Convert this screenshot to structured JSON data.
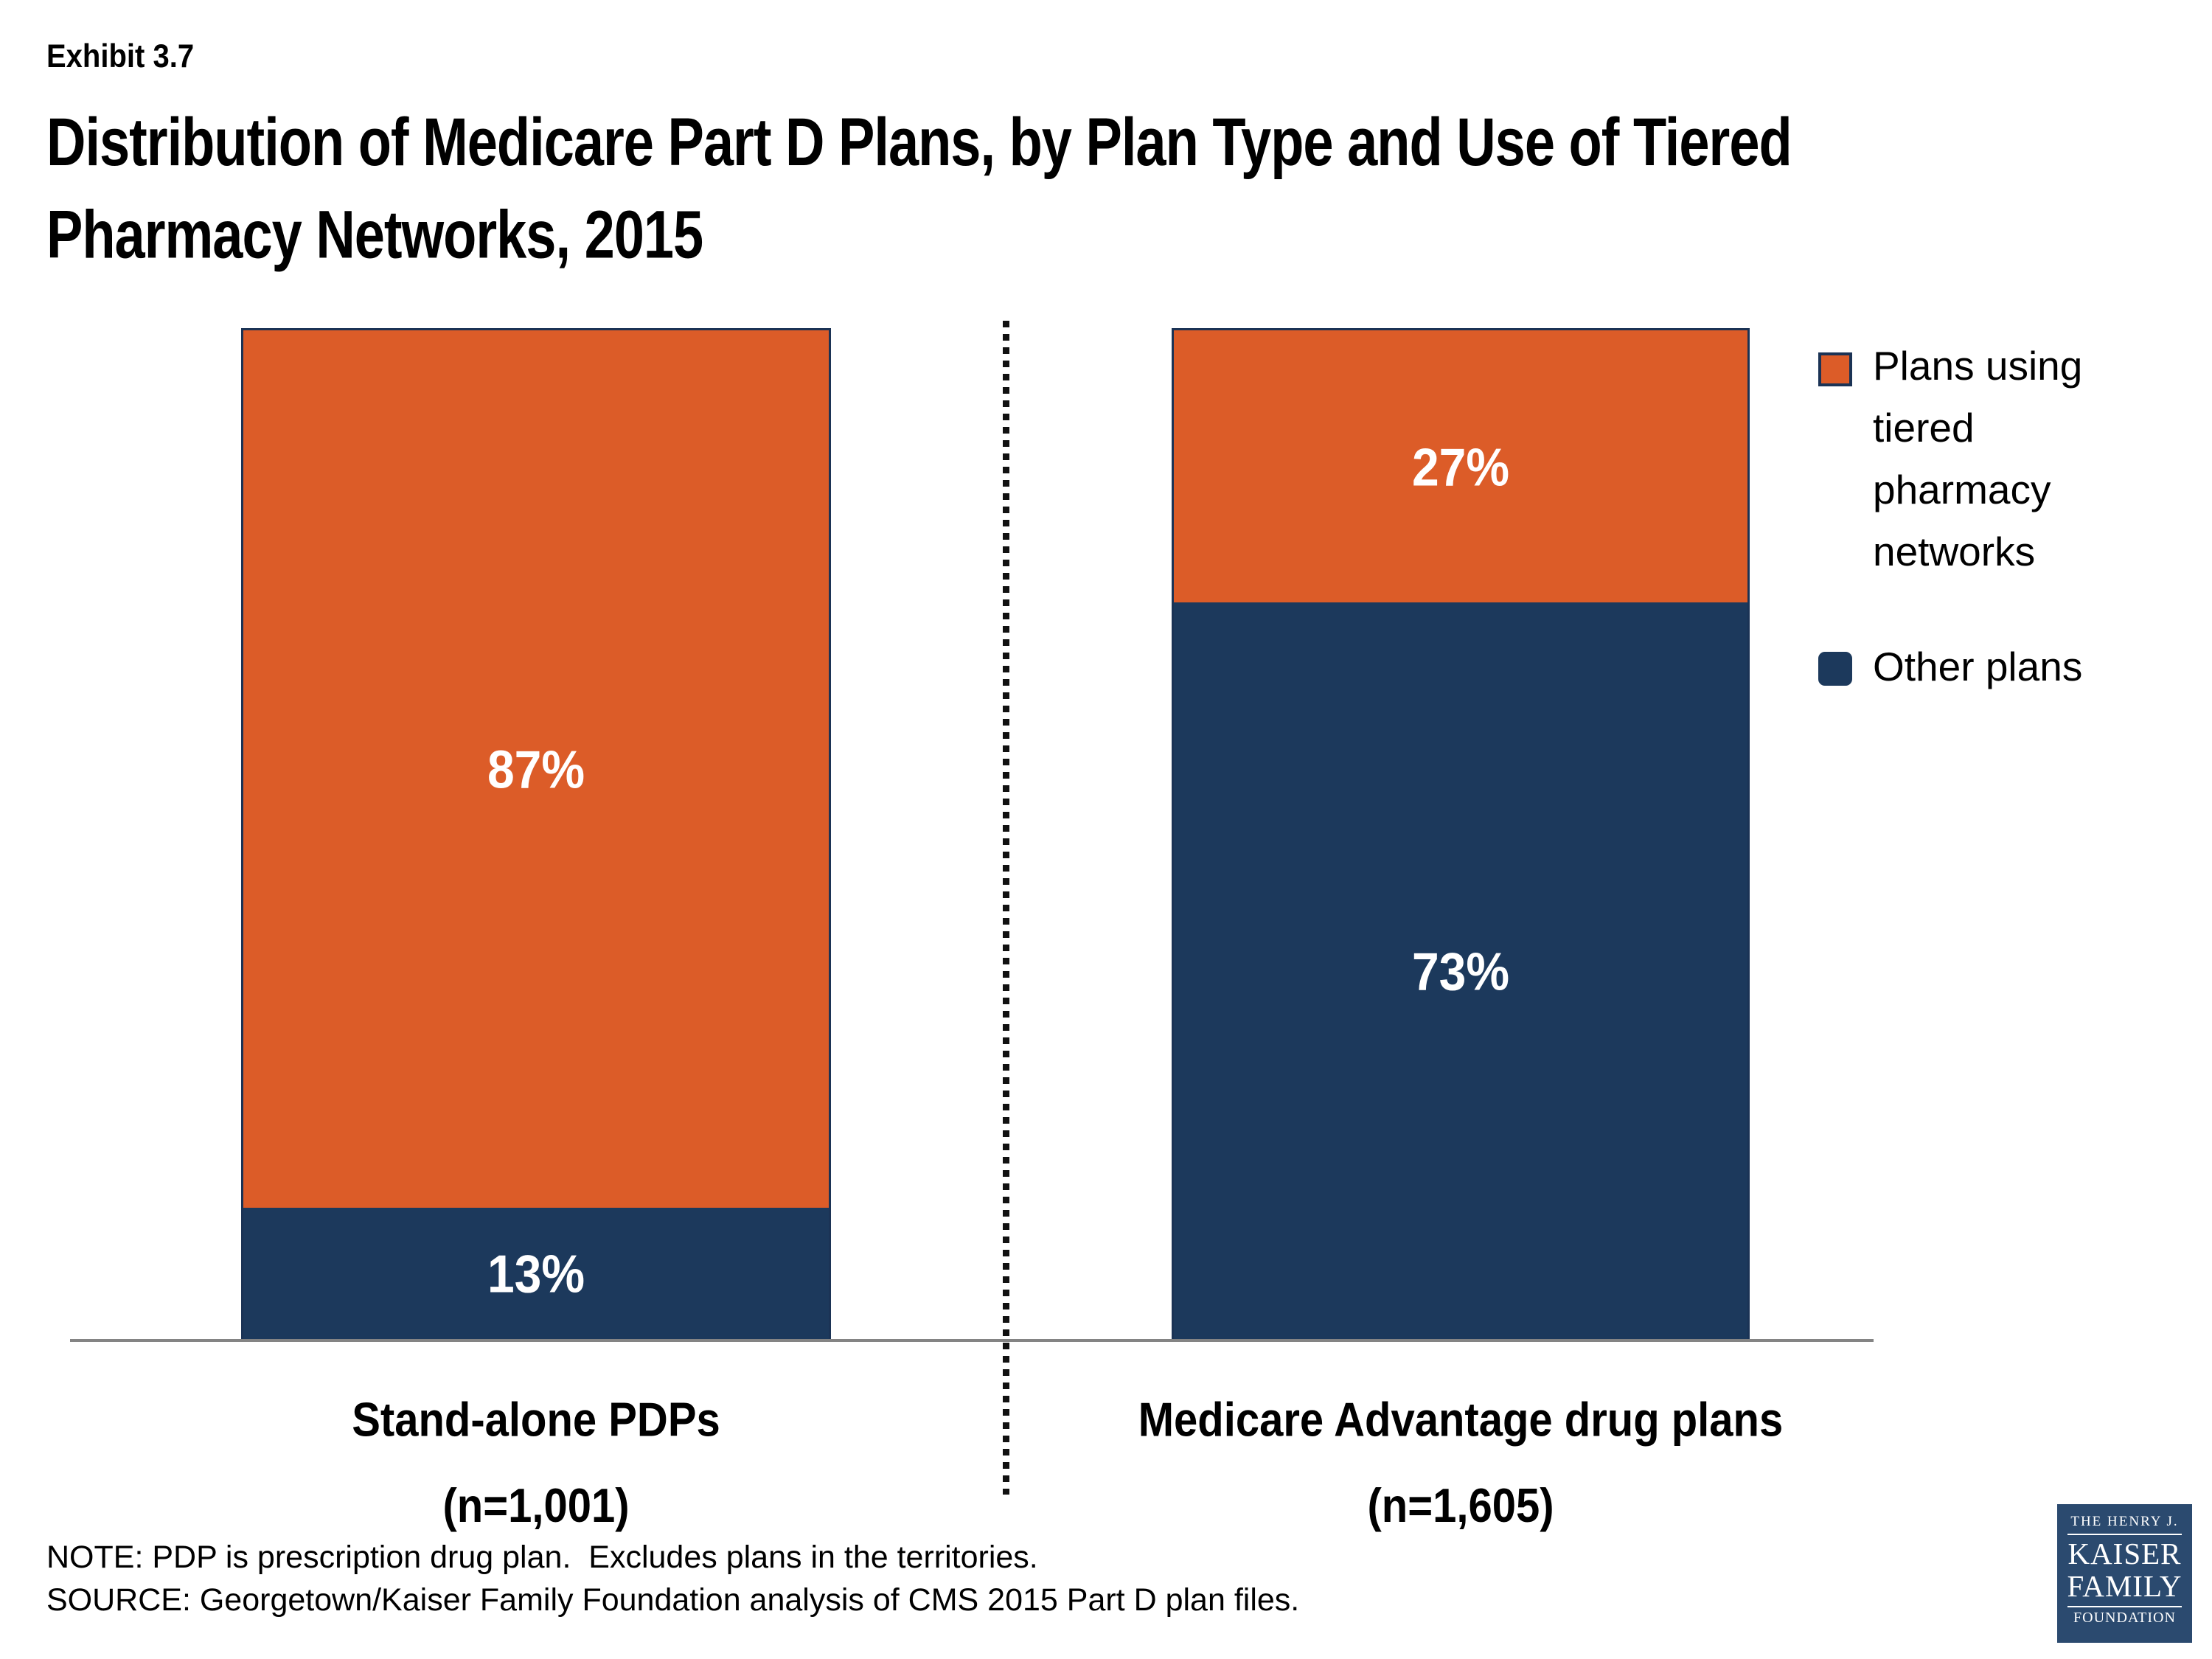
{
  "exhibit": "Exhibit 3.7",
  "title_line1": "Distribution of Medicare Part D Plans, by Plan Type and Use of Tiered",
  "title_line2": "Pharmacy Networks, 2015",
  "chart_data": {
    "type": "bar",
    "subtype": "100%-stacked-column",
    "title": "Distribution of Medicare Part D Plans, by Plan Type and Use of Tiered Pharmacy Networks, 2015",
    "categories": [
      "Stand-alone PDPs (n=1,001)",
      "Medicare Advantage drug plans (n=1,605)"
    ],
    "series": [
      {
        "name": "Plans using tiered pharmacy networks",
        "values": [
          87,
          27
        ],
        "color": "#DC5C28"
      },
      {
        "name": "Other plans",
        "values": [
          13,
          73
        ],
        "color": "#1C395C"
      }
    ],
    "value_format": "percent",
    "ylim": [
      0,
      100
    ],
    "grid": false,
    "legend_position": "right",
    "data_labels": [
      "87%",
      "13%",
      "27%",
      "73%"
    ]
  },
  "bars": [
    {
      "label_line1": "Stand-alone PDPs",
      "label_line2": "(n=1,001)",
      "tiered_pct": 87,
      "other_pct": 13,
      "tiered_pct_label": "87%",
      "other_pct_label": "13%"
    },
    {
      "label_line1": "Medicare Advantage drug plans",
      "label_line2": "(n=1,605)",
      "tiered_pct": 27,
      "other_pct": 73,
      "tiered_pct_label": "27%",
      "other_pct_label": "73%"
    }
  ],
  "legend": {
    "tiered_label": "Plans using tiered pharmacy networks",
    "other_label": "Other plans"
  },
  "notes": {
    "note": "NOTE: PDP is prescription drug plan.  Excludes plans in the territories.",
    "source": "SOURCE: Georgetown/Kaiser Family Foundation analysis of CMS 2015 Part D plan files."
  },
  "logo": {
    "line1": "THE HENRY J.",
    "line2": "KAISER",
    "line3": "FAMILY",
    "line4": "FOUNDATION"
  },
  "colors": {
    "tiered": "#DC5C28",
    "other": "#1C395C",
    "bar_border": "#1B3355",
    "baseline": "#848484",
    "divider": "#111111",
    "logo_bg": "#2B4A6F"
  }
}
